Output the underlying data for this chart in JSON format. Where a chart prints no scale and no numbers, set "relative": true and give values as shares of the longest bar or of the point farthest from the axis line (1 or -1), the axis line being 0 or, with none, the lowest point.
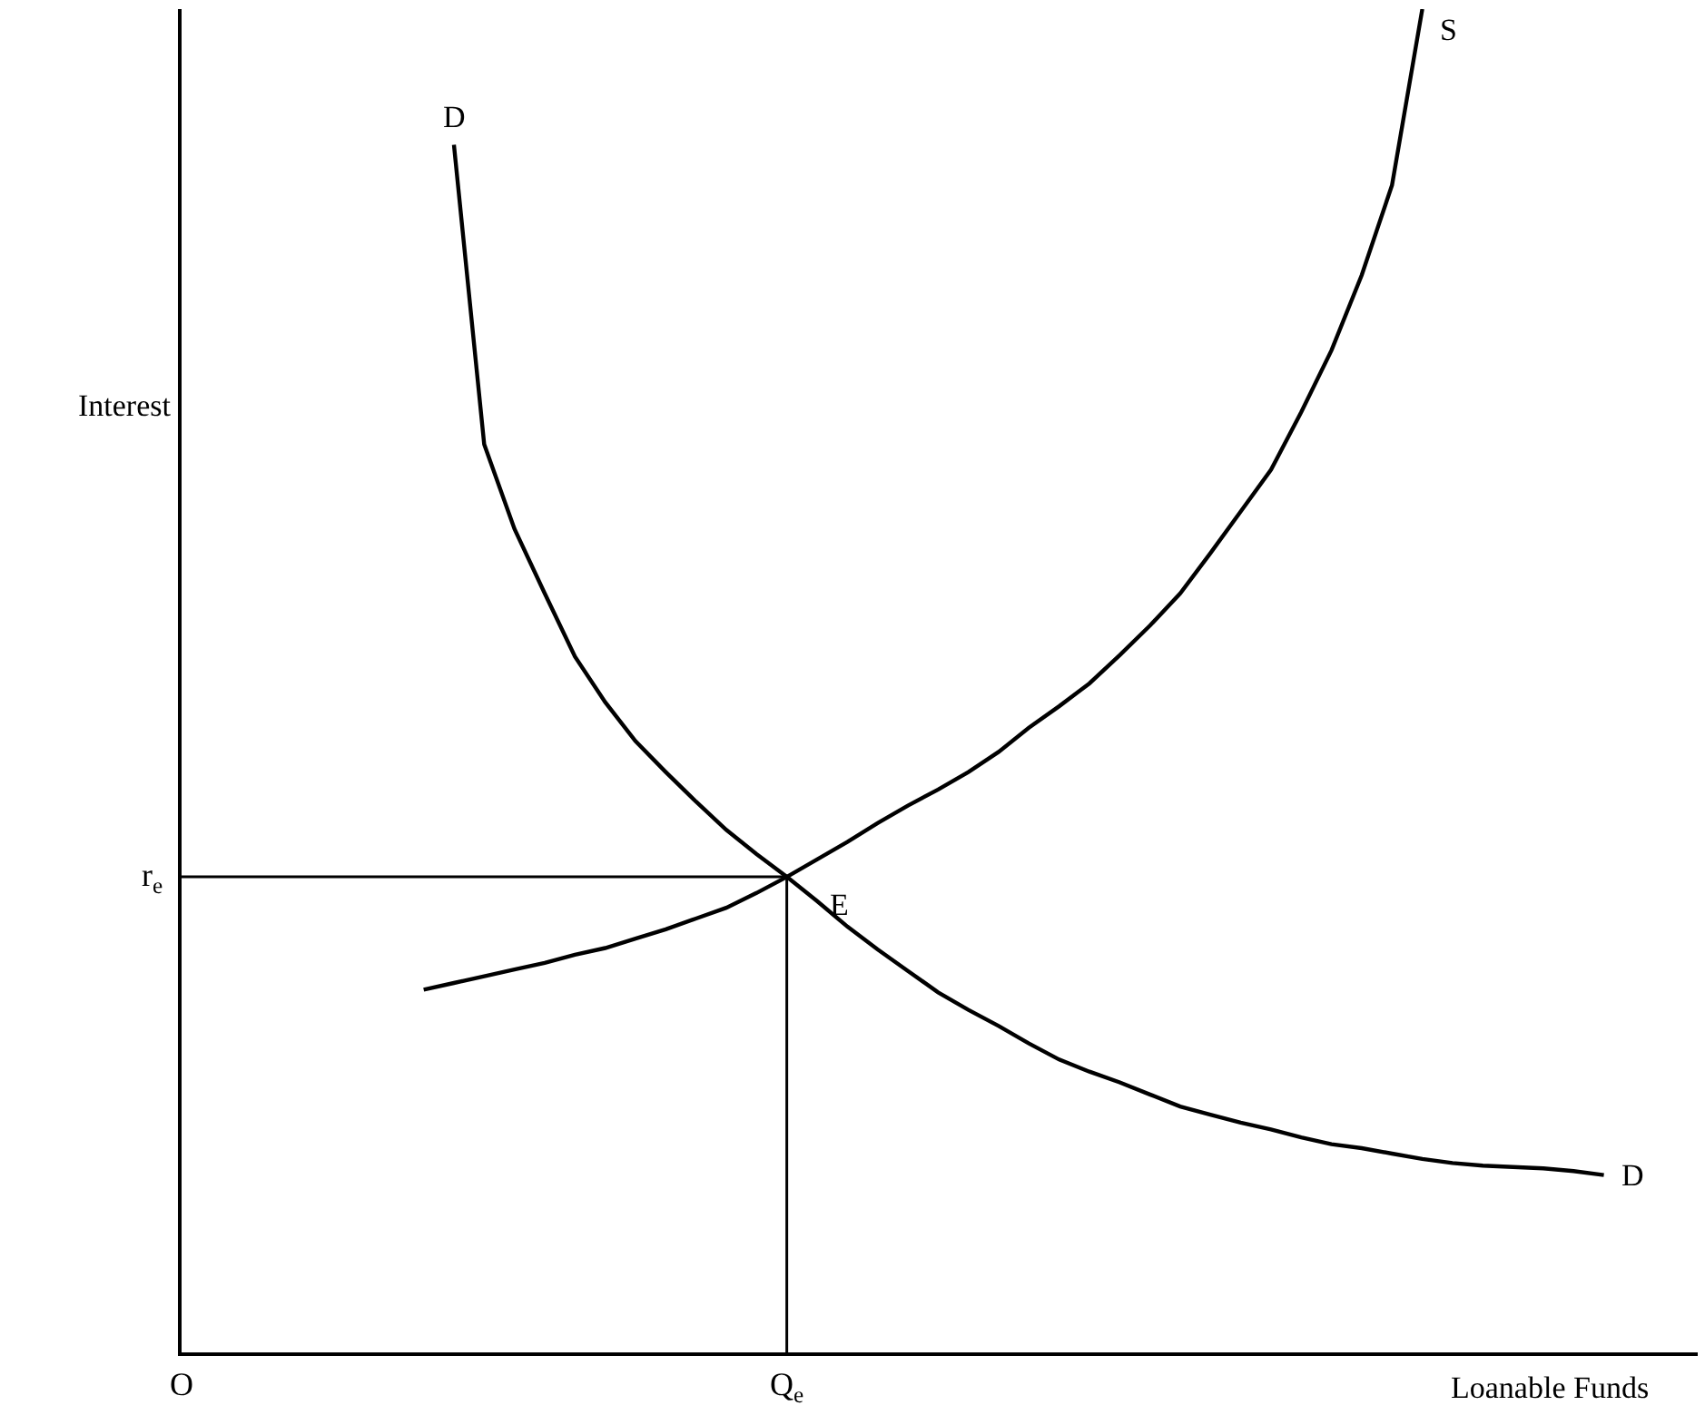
{
  "chart_data": {
    "type": "line",
    "relative": true,
    "xlabel": "Loanable Funds",
    "ylabel": "Interest",
    "legend": false,
    "marker": "none",
    "line_style": "solid",
    "categories": [
      "O",
      null,
      null,
      null,
      null,
      null,
      null,
      null,
      null,
      null,
      null,
      null,
      null,
      null,
      null,
      null,
      null,
      null,
      null,
      null,
      "Q$_{e}$",
      null,
      null,
      null,
      null,
      null,
      null,
      null,
      null,
      null,
      null,
      null,
      null,
      null,
      null,
      null,
      null,
      null,
      null,
      null,
      null,
      null,
      null,
      null,
      null,
      null,
      null,
      null
    ],
    "series": [
      {
        "name": "D",
        "color": "#000000",
        "values": [
          null,
          null,
          null,
          null,
          null,
          null,
          null,
          null,
          null,
          0.899,
          0.676,
          0.613,
          0.565,
          0.518,
          0.484,
          0.455,
          0.432,
          0.41,
          0.389,
          0.371,
          0.354,
          0.336,
          0.317,
          0.3,
          0.284,
          0.268,
          0.255,
          0.243,
          0.23,
          0.218,
          0.209,
          0.201,
          0.192,
          0.183,
          0.177,
          0.171,
          0.166,
          0.16,
          0.155,
          0.152,
          0.148,
          0.144,
          0.141,
          0.139,
          0.138,
          0.137,
          0.135,
          0.132
        ]
      },
      {
        "name": "S",
        "color": "#000000",
        "values": [
          null,
          null,
          null,
          null,
          null,
          null,
          null,
          null,
          0.27,
          0.275,
          0.28,
          0.285,
          0.29,
          0.296,
          0.301,
          0.308,
          0.315,
          0.323,
          0.331,
          0.342,
          0.354,
          0.367,
          0.38,
          0.394,
          0.407,
          0.419,
          0.432,
          0.447,
          0.465,
          0.481,
          0.498,
          0.519,
          0.541,
          0.565,
          0.595,
          0.626,
          0.657,
          0.7,
          0.746,
          0.802,
          0.869,
          1,
          null,
          null,
          null,
          null,
          null,
          null
        ]
      }
    ],
    "ref_lines": [
      {
        "axis": "y",
        "value": 0.354,
        "label": "r$_{e}$",
        "color": "#000000"
      },
      {
        "axis": "x",
        "value": "Q$_{e}$",
        "color": "#000000"
      }
    ],
    "annotations": [
      {
        "text": "E",
        "x": "Q$_{e}$",
        "y": 0.354
      }
    ]
  }
}
